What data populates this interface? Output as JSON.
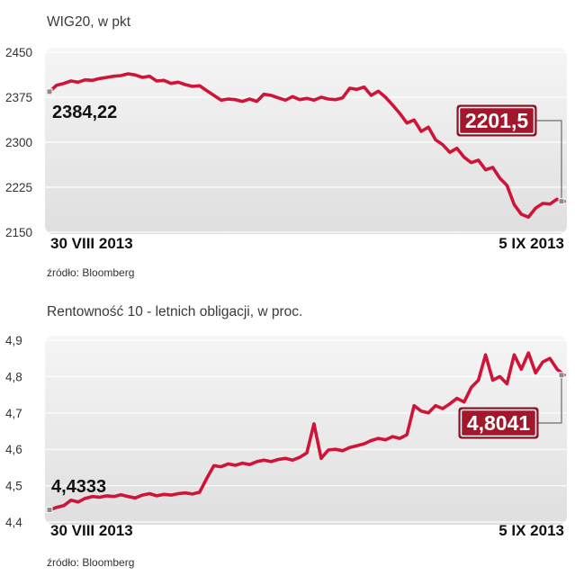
{
  "colors": {
    "line": "#cf1438",
    "label_box": "#a3172c",
    "label_box_border": "#6d0f1e",
    "grid": "#ffffff",
    "connector": "#6b6b6b",
    "marker": "#8a8a8a"
  },
  "chart_data": [
    {
      "type": "line",
      "title": "WIG20, w pkt",
      "source": "źródło: Bloomberg",
      "xticks": [
        "30 VIII 2013",
        "5 IX 2013"
      ],
      "yticks": [
        2450,
        2375,
        2300,
        2225,
        2150
      ],
      "ytick_labels": [
        "2450",
        "2375",
        "2300",
        "2225",
        "2150"
      ],
      "ylim": [
        2150,
        2450
      ],
      "grid": true,
      "start_label": "2384,22",
      "end_label": "2201,5",
      "series": [
        {
          "values": [
            2384.22,
            2395,
            2398,
            2402,
            2400,
            2404,
            2403,
            2406,
            2408,
            2410,
            2411,
            2414,
            2412,
            2408,
            2410,
            2402,
            2403,
            2398,
            2400,
            2396,
            2393,
            2394,
            2386,
            2378,
            2370,
            2372,
            2371,
            2368,
            2372,
            2368,
            2380,
            2378,
            2374,
            2370,
            2376,
            2371,
            2373,
            2370,
            2375,
            2372,
            2371,
            2374,
            2390,
            2388,
            2392,
            2378,
            2385,
            2375,
            2362,
            2348,
            2332,
            2337,
            2318,
            2325,
            2304,
            2296,
            2283,
            2290,
            2275,
            2266,
            2270,
            2254,
            2258,
            2240,
            2228,
            2196,
            2180,
            2175,
            2190,
            2198,
            2197,
            2205,
            2201.5
          ]
        }
      ]
    },
    {
      "type": "line",
      "title": "Rentowność 10 - letnich obligacji, w proc.",
      "source": "źródło: Bloomberg",
      "xticks": [
        "30 VIII 2013",
        "5 IX 2013"
      ],
      "yticks": [
        4.9,
        4.8,
        4.7,
        4.6,
        4.5,
        4.4
      ],
      "ytick_labels": [
        "4,9",
        "4,8",
        "4,7",
        "4,6",
        "4,5",
        "4,4"
      ],
      "ylim": [
        4.4,
        4.9
      ],
      "grid": true,
      "start_label": "4,4333",
      "end_label": "4,8041",
      "series": [
        {
          "values": [
            4.4333,
            4.44,
            4.445,
            4.46,
            4.455,
            4.465,
            4.47,
            4.468,
            4.472,
            4.47,
            4.475,
            4.47,
            4.466,
            4.474,
            4.478,
            4.472,
            4.476,
            4.474,
            4.478,
            4.48,
            4.477,
            4.482,
            4.52,
            4.555,
            4.552,
            4.56,
            4.556,
            4.562,
            4.558,
            4.566,
            4.57,
            4.566,
            4.572,
            4.575,
            4.57,
            4.578,
            4.59,
            4.67,
            4.575,
            4.598,
            4.6,
            4.596,
            4.605,
            4.61,
            4.615,
            4.624,
            4.63,
            4.626,
            4.635,
            4.63,
            4.64,
            4.72,
            4.705,
            4.7,
            4.72,
            4.712,
            4.725,
            4.74,
            4.73,
            4.77,
            4.79,
            4.86,
            4.79,
            4.8,
            4.78,
            4.86,
            4.82,
            4.865,
            4.81,
            4.84,
            4.85,
            4.82,
            4.8041
          ]
        }
      ]
    }
  ]
}
